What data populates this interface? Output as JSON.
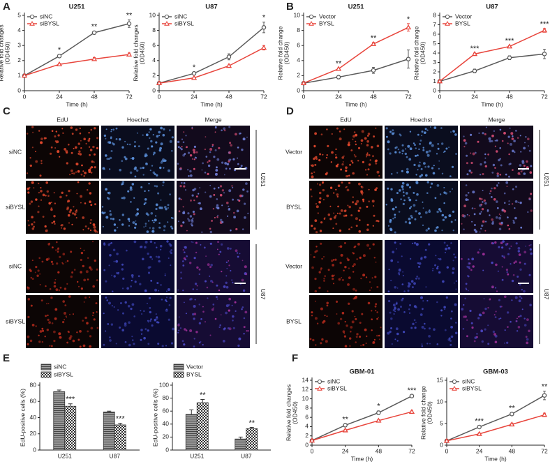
{
  "panel_letters": [
    "A",
    "B",
    "C",
    "D",
    "E",
    "F"
  ],
  "microscopy": [
    {
      "columns": [
        "EdU",
        "Hoechst",
        "Merge"
      ],
      "rows": [
        "siNC",
        "siBYSL",
        "siNC",
        "siBYSL"
      ],
      "cell_lines": [
        "U251",
        "U87"
      ]
    },
    {
      "columns": [
        "EdU",
        "Hoechst",
        "Merge"
      ],
      "rows": [
        "Vector",
        "BYSL",
        "Vector",
        "BYSL"
      ],
      "cell_lines": [
        "U251",
        "U87"
      ]
    }
  ],
  "chart_data": [
    {
      "type": "line",
      "title": "U251",
      "xlabel": "Time (h)",
      "ylabel": [
        "Relative fold changes",
        "(OD450)"
      ],
      "x": [
        0,
        24,
        48,
        72
      ],
      "xlim": [
        0,
        72
      ],
      "xticks": [
        0,
        24,
        48,
        72
      ],
      "ylim": [
        0,
        5
      ],
      "yticks": [
        0,
        1,
        2,
        3,
        4,
        5
      ],
      "legend": "top-left",
      "series": [
        {
          "name": "siNC",
          "color": "#5a5a5a",
          "marker": "circle",
          "values": [
            1,
            2.3,
            3.85,
            4.45
          ],
          "errors": [
            0.05,
            0.1,
            0.1,
            0.25
          ]
        },
        {
          "name": "siBYSL",
          "color": "#e8453c",
          "marker": "triangle",
          "values": [
            1,
            1.75,
            2.1,
            2.4
          ],
          "errors": [
            0.05,
            0.05,
            0.1,
            0.1
          ]
        }
      ],
      "significance": [
        null,
        "*",
        "**",
        "**"
      ]
    },
    {
      "type": "line",
      "title": "U87",
      "xlabel": "Time (h)",
      "ylabel": [
        "Relative fold changes",
        "(OD450)"
      ],
      "x": [
        0,
        24,
        48,
        72
      ],
      "xlim": [
        0,
        72
      ],
      "xticks": [
        0,
        24,
        48,
        72
      ],
      "ylim": [
        0,
        10
      ],
      "yticks": [
        0,
        2,
        4,
        6,
        8,
        10
      ],
      "legend": "top-left",
      "series": [
        {
          "name": "siNC",
          "color": "#5a5a5a",
          "marker": "circle",
          "values": [
            1,
            2.3,
            4.5,
            8.4
          ],
          "errors": [
            0.1,
            0.2,
            0.4,
            0.7
          ]
        },
        {
          "name": "siBYSL",
          "color": "#e8453c",
          "marker": "triangle",
          "values": [
            1,
            1.7,
            3.3,
            5.7
          ],
          "errors": [
            0.1,
            0.1,
            0.1,
            0.3
          ]
        }
      ],
      "significance": [
        null,
        "*",
        null,
        "*"
      ]
    },
    {
      "type": "line",
      "title": "U251",
      "xlabel": "Time (h)",
      "ylabel": [
        "Relative fold change",
        "(OD450)"
      ],
      "x": [
        0,
        24,
        48,
        72
      ],
      "xlim": [
        0,
        72
      ],
      "xticks": [
        0,
        24,
        48,
        72
      ],
      "ylim": [
        0,
        10
      ],
      "yticks": [
        0,
        2,
        4,
        6,
        8,
        10
      ],
      "legend": "top-left",
      "series": [
        {
          "name": "Vector",
          "color": "#5a5a5a",
          "marker": "circle",
          "values": [
            1,
            1.8,
            2.7,
            4.2
          ],
          "errors": [
            0.1,
            0.2,
            0.4,
            1.2
          ]
        },
        {
          "name": "BYSL",
          "color": "#e8453c",
          "marker": "triangle",
          "values": [
            1,
            2.9,
            6.2,
            8.4
          ],
          "errors": [
            0.1,
            0.1,
            0.2,
            0.5
          ]
        }
      ],
      "significance": [
        null,
        "**",
        "**",
        "*"
      ]
    },
    {
      "type": "line",
      "title": "U87",
      "xlabel": "Time (h)",
      "ylabel": [
        "Relative fold change",
        "(OD450)"
      ],
      "x": [
        0,
        24,
        48,
        72
      ],
      "xlim": [
        0,
        72
      ],
      "xticks": [
        0,
        24,
        48,
        72
      ],
      "ylim": [
        0,
        8
      ],
      "yticks": [
        0,
        1,
        2,
        3,
        4,
        5,
        6,
        7,
        8
      ],
      "legend": "top-left",
      "series": [
        {
          "name": "Vector",
          "color": "#5a5a5a",
          "marker": "circle",
          "values": [
            1,
            2.1,
            3.5,
            3.9
          ],
          "errors": [
            0.1,
            0.2,
            0.2,
            0.5
          ]
        },
        {
          "name": "BYSL",
          "color": "#e8453c",
          "marker": "triangle",
          "values": [
            1,
            3.9,
            4.7,
            6.4
          ],
          "errors": [
            0.1,
            0.1,
            0.1,
            0.2
          ]
        }
      ],
      "significance": [
        null,
        "***",
        "***",
        "***"
      ]
    },
    {
      "type": "bar",
      "ylabel": [
        "EdU-positive cells (%)"
      ],
      "categories": [
        "U251",
        "U87"
      ],
      "ylim": [
        0,
        80
      ],
      "yticks": [
        0,
        20,
        40,
        60,
        80
      ],
      "series": [
        {
          "name": "siNC",
          "pattern": "striped",
          "values": [
            72,
            47
          ],
          "errors": [
            2,
            1
          ],
          "significance": [
            null,
            null
          ]
        },
        {
          "name": "siBYSL",
          "pattern": "checkered",
          "values": [
            54,
            31
          ],
          "errors": [
            3,
            2
          ],
          "significance": [
            "***",
            "***"
          ]
        }
      ]
    },
    {
      "type": "bar",
      "ylabel": [
        "EdU-positive cells (%)"
      ],
      "categories": [
        "U251",
        "U87"
      ],
      "ylim": [
        0,
        100
      ],
      "yticks": [
        0,
        20,
        40,
        60,
        80,
        100
      ],
      "series": [
        {
          "name": "Vector",
          "pattern": "striped",
          "values": [
            55,
            17
          ],
          "errors": [
            7,
            3
          ],
          "significance": [
            null,
            null
          ]
        },
        {
          "name": "BYSL",
          "pattern": "checkered",
          "values": [
            73,
            33
          ],
          "errors": [
            5,
            2
          ],
          "significance": [
            "**",
            "**"
          ]
        }
      ]
    },
    {
      "type": "line",
      "title": "GBM-01",
      "xlabel": "Time (h)",
      "ylabel": [
        "Relative fold changes",
        "(OD450)"
      ],
      "x": [
        0,
        24,
        48,
        72
      ],
      "xlim": [
        0,
        72
      ],
      "xticks": [
        0,
        24,
        48,
        72
      ],
      "ylim": [
        0,
        14
      ],
      "yticks": [
        0,
        2,
        4,
        6,
        8,
        10,
        12,
        14
      ],
      "legend": "top-left",
      "series": [
        {
          "name": "siNC",
          "color": "#5a5a5a",
          "marker": "circle",
          "values": [
            1,
            4.3,
            7,
            10.6
          ],
          "errors": [
            0.1,
            0.3,
            0.4,
            0.2
          ]
        },
        {
          "name": "siBYSL",
          "color": "#e8453c",
          "marker": "triangle",
          "values": [
            1,
            3.2,
            5.3,
            7.2
          ],
          "errors": [
            0.1,
            0.2,
            0.2,
            0.2
          ]
        }
      ],
      "significance": [
        null,
        "**",
        "*",
        "***"
      ]
    },
    {
      "type": "line",
      "title": "GBM-03",
      "xlabel": "Time (h)",
      "ylabel": [
        "Relative fold change",
        "(OD450)"
      ],
      "x": [
        0,
        24,
        48,
        72
      ],
      "xlim": [
        0,
        72
      ],
      "xticks": [
        0,
        24,
        48,
        72
      ],
      "ylim": [
        0,
        15
      ],
      "yticks": [
        0,
        5,
        10,
        15
      ],
      "legend": "top-left",
      "series": [
        {
          "name": "siNC",
          "color": "#5a5a5a",
          "marker": "circle",
          "values": [
            1,
            4.2,
            7.2,
            11.5
          ],
          "errors": [
            0.2,
            0.3,
            0.3,
            1
          ]
        },
        {
          "name": "siBYSL",
          "color": "#e8453c",
          "marker": "triangle",
          "values": [
            1,
            2.6,
            4.8,
            7
          ],
          "errors": [
            0.2,
            0.2,
            0.3,
            0.4
          ]
        }
      ],
      "significance": [
        null,
        "***",
        "**",
        "**"
      ]
    }
  ]
}
